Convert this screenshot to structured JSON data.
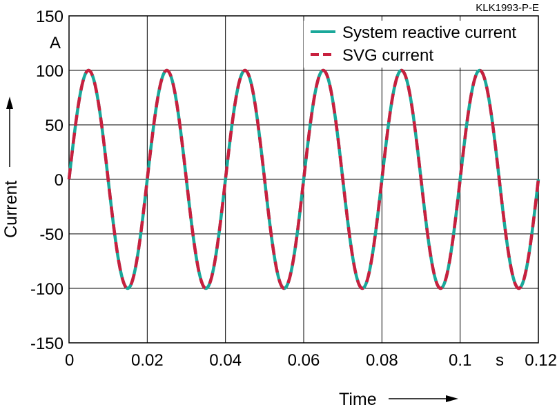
{
  "corner_label": "KLK1993-P-E",
  "chart_data": {
    "type": "line",
    "xlabel": "Time",
    "ylabel": "Current",
    "x_unit": "s",
    "y_unit": "A",
    "xlim": [
      0,
      0.12
    ],
    "ylim": [
      -150,
      150
    ],
    "x_ticks": [
      "0",
      "0.02",
      "0.04",
      "0.06",
      "0.08",
      "0.1",
      "0.12"
    ],
    "y_ticks": [
      "150",
      "100",
      "50",
      "0",
      "-50",
      "-100",
      "-150"
    ],
    "grid": true,
    "legend_position": "top-right",
    "series": [
      {
        "name": "System reactive current",
        "color": "#1aa89a",
        "style": "solid",
        "amplitude": 100,
        "frequency_hz": 50,
        "phase_deg": 0
      },
      {
        "name": "SVG current",
        "color": "#c8203e",
        "style": "dashed",
        "amplitude": 100,
        "frequency_hz": 50,
        "phase_deg": 0
      }
    ]
  }
}
